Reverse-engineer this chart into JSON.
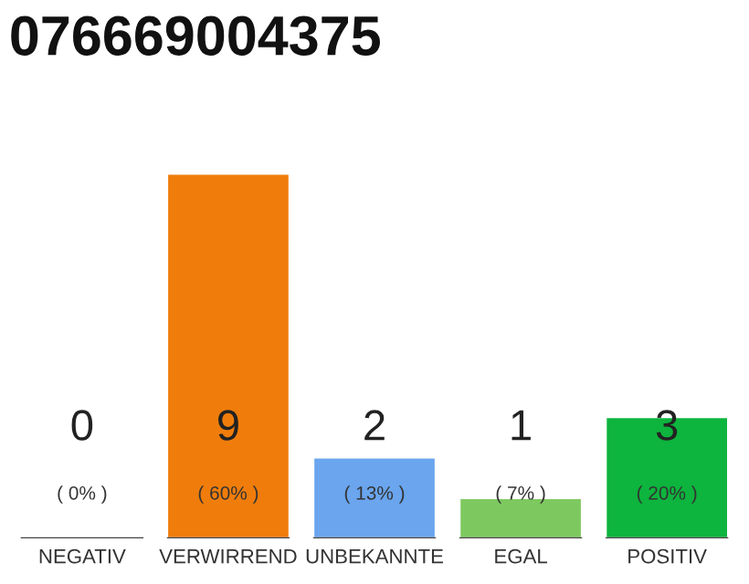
{
  "chart_data": {
    "type": "bar",
    "title": "076669004375",
    "categories": [
      "NEGATIV",
      "VERWIRREND",
      "UNBEKANNTE",
      "EGAL",
      "POSITIV"
    ],
    "values": [
      0,
      9,
      2,
      1,
      3
    ],
    "colors": [
      null,
      "#f07d0b",
      "#6aa5ee",
      "#7ec95f",
      "#0db43d"
    ],
    "value_labels": [
      "0\n( 0% )",
      "9\n( 60% )",
      "2\n( 13% )",
      "1\n( 7% )",
      "3\n( 20% )"
    ],
    "grid": false,
    "legend": false
  }
}
